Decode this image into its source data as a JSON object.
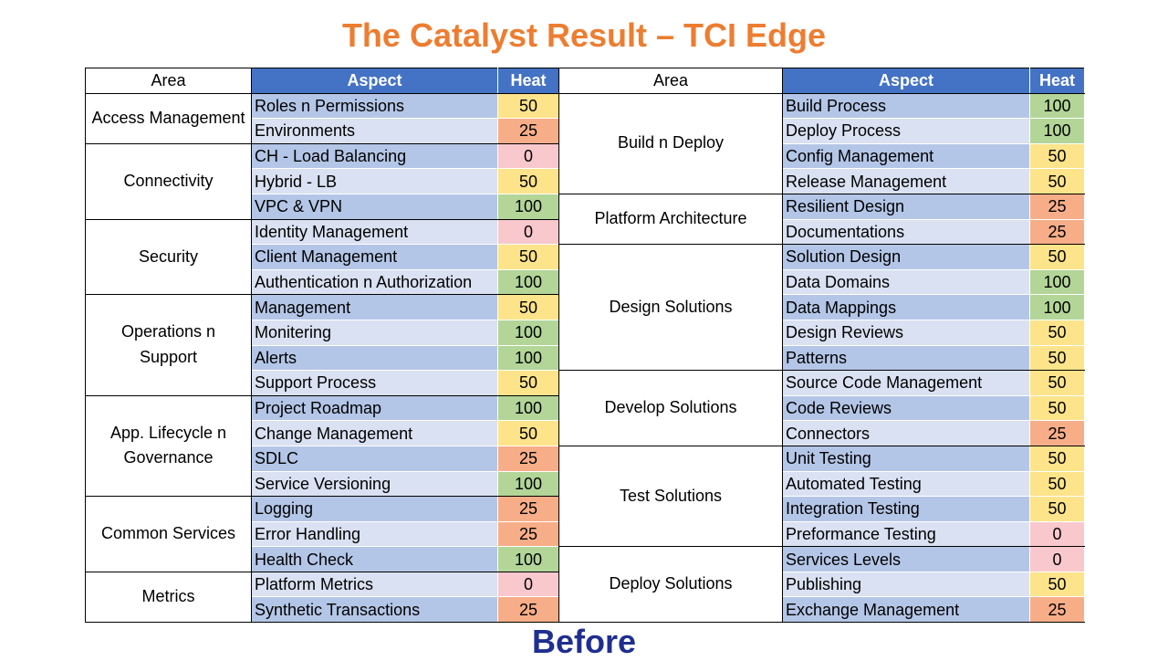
{
  "title": "The Catalyst Result – TCI Edge",
  "heat_colors": {
    "0": "#f8c8cc",
    "25": "#f7ae88",
    "50": "#fde38a",
    "100": "#b3d598"
  },
  "tables": [
    {
      "headers": [
        "Area",
        "Aspect",
        "Heat"
      ],
      "groups": [
        {
          "area": "Access Management",
          "rows": [
            {
              "aspect": "Roles n Permissions",
              "heat": 50
            },
            {
              "aspect": "Environments",
              "heat": 25
            }
          ]
        },
        {
          "area": "Connectivity",
          "rows": [
            {
              "aspect": "CH - Load Balancing",
              "heat": 0
            },
            {
              "aspect": "Hybrid - LB",
              "heat": 50
            },
            {
              "aspect": "VPC & VPN",
              "heat": 100
            }
          ]
        },
        {
          "area": "Security",
          "rows": [
            {
              "aspect": "Identity Management",
              "heat": 0
            },
            {
              "aspect": "Client Management",
              "heat": 50
            },
            {
              "aspect": "Authentication n Authorization",
              "heat": 100
            }
          ]
        },
        {
          "area": "Operations n Support",
          "rows": [
            {
              "aspect": "Management",
              "heat": 50
            },
            {
              "aspect": "Monitering",
              "heat": 100
            },
            {
              "aspect": "Alerts",
              "heat": 100
            },
            {
              "aspect": "Support Process",
              "heat": 50
            }
          ]
        },
        {
          "area": "App. Lifecycle n Governance",
          "rows": [
            {
              "aspect": "Project Roadmap",
              "heat": 100
            },
            {
              "aspect": "Change Management",
              "heat": 50
            },
            {
              "aspect": "SDLC",
              "heat": 25
            },
            {
              "aspect": "Service Versioning",
              "heat": 100
            }
          ]
        },
        {
          "area": "Common Services",
          "rows": [
            {
              "aspect": "Logging",
              "heat": 25
            },
            {
              "aspect": "Error Handling",
              "heat": 25
            },
            {
              "aspect": "Health Check",
              "heat": 100
            }
          ]
        },
        {
          "area": "Metrics",
          "rows": [
            {
              "aspect": "Platform Metrics",
              "heat": 0
            },
            {
              "aspect": "Synthetic Transactions",
              "heat": 25
            }
          ]
        }
      ]
    },
    {
      "headers": [
        "Area",
        "Aspect",
        "Heat"
      ],
      "groups": [
        {
          "area": "Build n Deploy",
          "rows": [
            {
              "aspect": "Build Process",
              "heat": 100
            },
            {
              "aspect": "Deploy Process",
              "heat": 100
            },
            {
              "aspect": "Config Management",
              "heat": 50
            },
            {
              "aspect": "Release Management",
              "heat": 50
            }
          ]
        },
        {
          "area": "Platform Architecture",
          "rows": [
            {
              "aspect": "Resilient Design",
              "heat": 25
            },
            {
              "aspect": "Documentations",
              "heat": 25
            }
          ]
        },
        {
          "area": "Design Solutions",
          "rows": [
            {
              "aspect": "Solution Design",
              "heat": 50
            },
            {
              "aspect": "Data Domains",
              "heat": 100
            },
            {
              "aspect": "Data Mappings",
              "heat": 100
            },
            {
              "aspect": "Design Reviews",
              "heat": 50
            },
            {
              "aspect": "Patterns",
              "heat": 50
            }
          ]
        },
        {
          "area": "Develop Solutions",
          "rows": [
            {
              "aspect": "Source Code Management",
              "heat": 50
            },
            {
              "aspect": "Code Reviews",
              "heat": 50
            },
            {
              "aspect": "Connectors",
              "heat": 25
            }
          ]
        },
        {
          "area": "Test Solutions",
          "rows": [
            {
              "aspect": "Unit Testing",
              "heat": 50
            },
            {
              "aspect": "Automated Testing",
              "heat": 50
            },
            {
              "aspect": "Integration Testing",
              "heat": 50
            },
            {
              "aspect": "Preformance Testing",
              "heat": 0
            }
          ]
        },
        {
          "area": "Deploy Solutions",
          "rows": [
            {
              "aspect": "Services Levels",
              "heat": 0
            },
            {
              "aspect": "Publishing",
              "heat": 50
            },
            {
              "aspect": "Exchange Management",
              "heat": 25
            }
          ]
        }
      ]
    }
  ],
  "caption": "Before"
}
